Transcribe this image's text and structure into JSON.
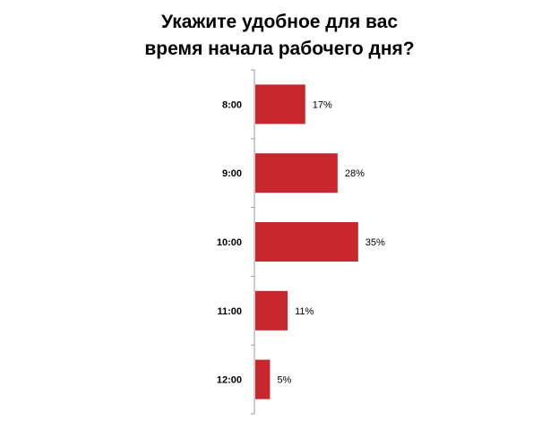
{
  "chart_data": {
    "type": "bar",
    "orientation": "horizontal",
    "title_lines": [
      "Укажите удобное для вас",
      "время начала рабочего дня?"
    ],
    "categories": [
      "8:00",
      "9:00",
      "10:00",
      "11:00",
      "12:00"
    ],
    "values": [
      17,
      28,
      35,
      11,
      5
    ],
    "value_labels": [
      "17%",
      "28%",
      "35%",
      "11%",
      "5%"
    ],
    "unit": "%",
    "xlim": [
      0,
      100
    ],
    "bar_color": "#C8282D",
    "grid": false,
    "legend": "none"
  }
}
